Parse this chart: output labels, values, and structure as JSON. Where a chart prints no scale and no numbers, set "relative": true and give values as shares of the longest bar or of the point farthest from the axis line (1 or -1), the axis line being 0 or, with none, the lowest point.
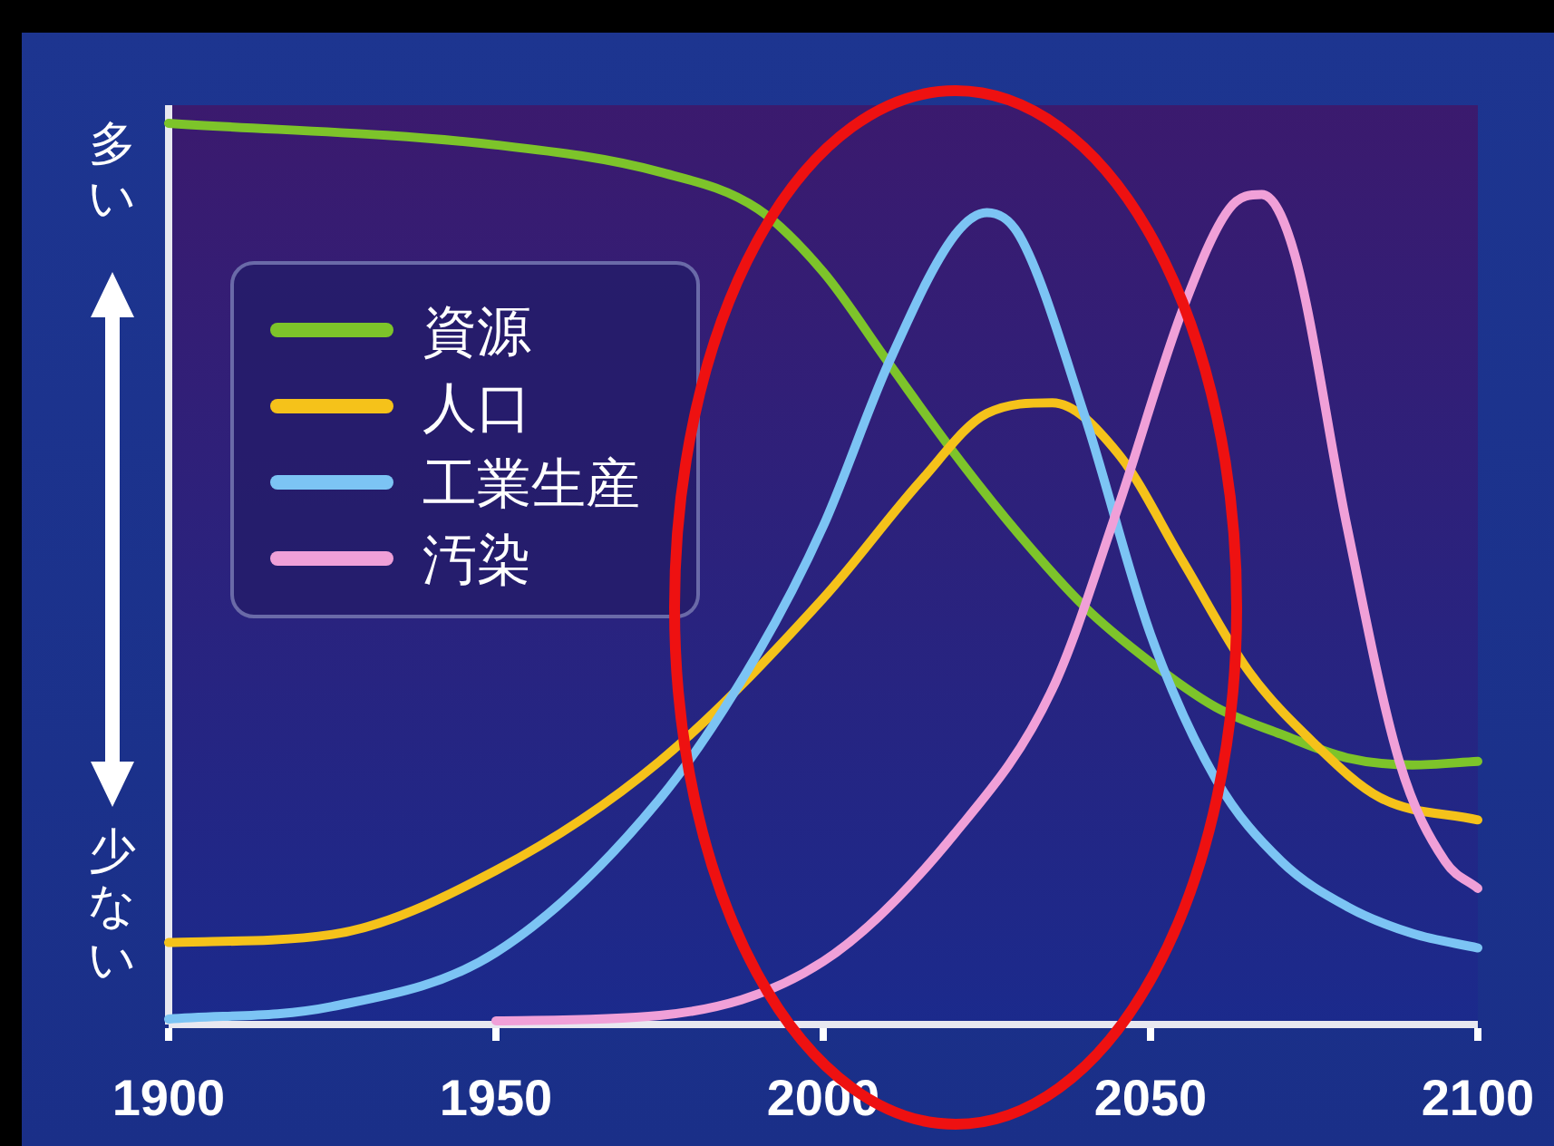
{
  "chart_data": {
    "type": "line",
    "relative": true,
    "xlim": [
      1900,
      2100
    ],
    "xticks": [
      1900,
      1950,
      2000,
      2050,
      2100
    ],
    "grid": false,
    "legend": "top left",
    "marker": "none",
    "line_style": "solid",
    "annotations": [
      "多い",
      "少ない"
    ],
    "series": [
      {
        "name": "資源",
        "color": "#7dc42a",
        "x": [
          1900,
          1950,
          1975,
          1990,
          2000,
          2010,
          2020,
          2030,
          2040,
          2050,
          2060,
          2070,
          2080,
          2090,
          2100
        ],
        "values": [
          1,
          0.976,
          0.946,
          0.905,
          0.835,
          0.734,
          0.634,
          0.543,
          0.463,
          0.402,
          0.352,
          0.322,
          0.296,
          0.288,
          0.292
        ]
      },
      {
        "name": "人口",
        "color": "#f5c21a",
        "x": [
          1900,
          1925,
          1950,
          1975,
          2000,
          2015,
          2025,
          2035,
          2045,
          2055,
          2065,
          2075,
          2085,
          2100
        ],
        "values": [
          0.091,
          0.1,
          0.171,
          0.292,
          0.473,
          0.604,
          0.678,
          0.69,
          0.634,
          0.513,
          0.392,
          0.312,
          0.252,
          0.227
        ]
      },
      {
        "name": "工業生産",
        "color": "#7cc4f4",
        "x": [
          1900,
          1925,
          1950,
          1975,
          1990,
          2000,
          2010,
          2020,
          2025,
          2030,
          2040,
          2050,
          2060,
          2070,
          2080,
          2090,
          2100
        ],
        "values": [
          0.006,
          0.02,
          0.08,
          0.25,
          0.412,
          0.553,
          0.734,
          0.875,
          0.901,
          0.875,
          0.674,
          0.433,
          0.272,
          0.181,
          0.131,
          0.101,
          0.085
        ]
      },
      {
        "name": "汚染",
        "color": "#f0a0d8",
        "x": [
          1950,
          1975,
          2000,
          2020,
          2035,
          2045,
          2055,
          2062,
          2067,
          2072,
          2080,
          2088,
          2095,
          2100
        ],
        "values": [
          0.004,
          0.01,
          0.07,
          0.211,
          0.372,
          0.573,
          0.795,
          0.905,
          0.921,
          0.855,
          0.553,
          0.292,
          0.181,
          0.151
        ]
      }
    ]
  }
}
